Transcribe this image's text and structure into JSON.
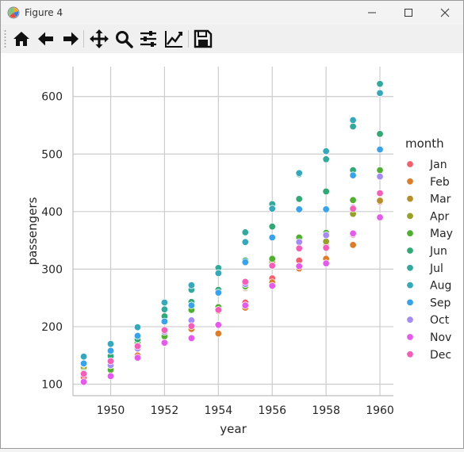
{
  "window": {
    "title": "Figure 4",
    "app_icon": "matplotlib-icon",
    "controls": [
      "minimize-icon",
      "maximize-icon",
      "close-icon"
    ]
  },
  "toolbar": {
    "buttons": [
      {
        "name": "home-button",
        "icon": "home-icon"
      },
      {
        "name": "back-button",
        "icon": "arrow-left-icon"
      },
      {
        "name": "forward-button",
        "icon": "arrow-right-icon"
      },
      {
        "name": "pan-button",
        "icon": "move-icon"
      },
      {
        "name": "zoom-button",
        "icon": "magnifier-icon"
      },
      {
        "name": "subplots-button",
        "icon": "sliders-icon"
      },
      {
        "name": "customize-button",
        "icon": "line-chart-icon"
      },
      {
        "name": "save-button",
        "icon": "floppy-disk-icon"
      }
    ]
  },
  "chart_data": {
    "type": "scatter",
    "xlabel": "year",
    "ylabel": "passengers",
    "xlim": [
      1948.6,
      1960.5
    ],
    "ylim": [
      80,
      652
    ],
    "xticks": [
      1950,
      1952,
      1954,
      1956,
      1958,
      1960
    ],
    "yticks": [
      100,
      200,
      300,
      400,
      500,
      600
    ],
    "grid": true,
    "legend_title": "month",
    "legend_position": "right",
    "x": [
      1949,
      1950,
      1951,
      1952,
      1953,
      1954,
      1955,
      1956,
      1957,
      1958,
      1959,
      1960
    ],
    "series": [
      {
        "name": "Jan",
        "color": "#f0606f",
        "values": [
          112,
          115,
          145,
          171,
          196,
          204,
          242,
          284,
          315,
          340,
          360,
          417
        ]
      },
      {
        "name": "Feb",
        "color": "#d97e2d",
        "values": [
          118,
          126,
          150,
          180,
          196,
          188,
          233,
          277,
          301,
          318,
          342,
          391
        ]
      },
      {
        "name": "Mar",
        "color": "#b68f2b",
        "values": [
          132,
          141,
          178,
          193,
          236,
          235,
          267,
          317,
          356,
          362,
          406,
          419
        ]
      },
      {
        "name": "Apr",
        "color": "#98a02c",
        "values": [
          129,
          135,
          163,
          181,
          235,
          227,
          269,
          313,
          348,
          348,
          396,
          461
        ]
      },
      {
        "name": "May",
        "color": "#52ae32",
        "values": [
          121,
          125,
          172,
          183,
          229,
          234,
          270,
          318,
          355,
          363,
          420,
          472
        ]
      },
      {
        "name": "Jun",
        "color": "#33a776",
        "values": [
          135,
          149,
          178,
          218,
          243,
          264,
          315,
          374,
          422,
          435,
          472,
          535
        ]
      },
      {
        "name": "Jul",
        "color": "#35a89c",
        "values": [
          148,
          170,
          199,
          230,
          264,
          302,
          364,
          413,
          465,
          491,
          548,
          622
        ]
      },
      {
        "name": "Aug",
        "color": "#38a7b9",
        "values": [
          148,
          170,
          199,
          242,
          272,
          293,
          347,
          405,
          467,
          505,
          559,
          606
        ]
      },
      {
        "name": "Sep",
        "color": "#3ba2e8",
        "values": [
          136,
          158,
          184,
          209,
          237,
          259,
          312,
          355,
          404,
          404,
          463,
          508
        ]
      },
      {
        "name": "Oct",
        "color": "#a48cf2",
        "values": [
          119,
          133,
          162,
          191,
          211,
          229,
          274,
          306,
          347,
          359,
          407,
          461
        ]
      },
      {
        "name": "Nov",
        "color": "#e35ce9",
        "values": [
          104,
          114,
          146,
          172,
          180,
          203,
          237,
          271,
          305,
          310,
          362,
          390
        ]
      },
      {
        "name": "Dec",
        "color": "#f25fb8",
        "values": [
          118,
          140,
          166,
          194,
          201,
          229,
          278,
          306,
          336,
          337,
          405,
          432
        ]
      }
    ]
  }
}
